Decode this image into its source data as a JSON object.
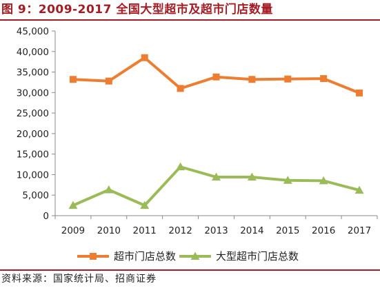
{
  "header": {
    "title": "图 9：2009-2017 全国大型超市及超市门店数量"
  },
  "footer": {
    "source": "资料来源：国家统计局、招商证券"
  },
  "colors": {
    "accent": "#a51c24",
    "series1": "#ed7d31",
    "series2": "#9bbb59",
    "axis": "#888888"
  },
  "chart_data": {
    "type": "line",
    "title": "",
    "xlabel": "",
    "ylabel": "",
    "x": [
      "2009",
      "2010",
      "2011",
      "2012",
      "2013",
      "2014",
      "2015",
      "2016",
      "2017"
    ],
    "ylim": [
      0,
      45000
    ],
    "yticks": [
      0,
      5000,
      10000,
      15000,
      20000,
      25000,
      30000,
      35000,
      40000,
      45000
    ],
    "ytick_labels": [
      "0",
      "5,000",
      "10,000",
      "15,000",
      "20,000",
      "25,000",
      "30,000",
      "35,000",
      "40,000",
      "45,000"
    ],
    "grid": false,
    "legend": "bottom",
    "series": [
      {
        "name": "超市门店总数",
        "marker": "square",
        "color": "#ed7d31",
        "values": [
          33200,
          32800,
          38500,
          31000,
          33800,
          33200,
          33300,
          33400,
          29900
        ]
      },
      {
        "name": "大型超市门店总数",
        "marker": "triangle",
        "color": "#9bbb59",
        "values": [
          2500,
          6300,
          2500,
          11900,
          9400,
          9400,
          8600,
          8500,
          6200
        ]
      }
    ]
  }
}
